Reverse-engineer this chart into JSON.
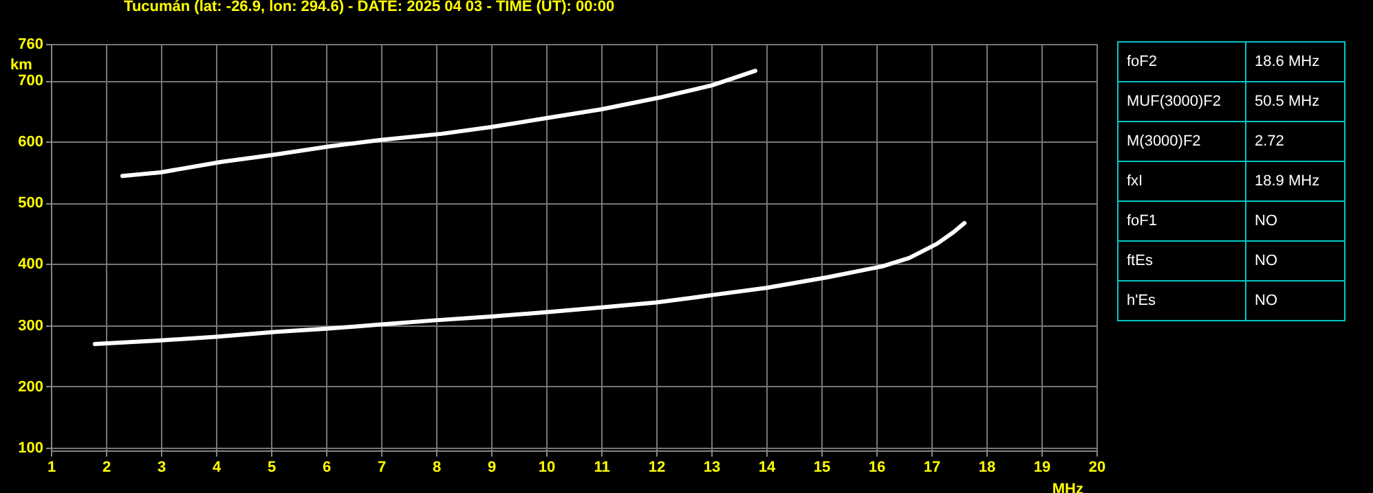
{
  "chart_data": [
    {
      "type": "line",
      "title": "Tucumán (lat: -26.9, lon: 294.6) - DATE: 2025 04 03 - TIME (UT): 00:00",
      "xlabel": "MHz",
      "ylabel": "km",
      "xlim": [
        1,
        20
      ],
      "ylim": [
        95,
        760
      ],
      "xticks": [
        1,
        2,
        3,
        4,
        5,
        6,
        7,
        8,
        9,
        10,
        11,
        12,
        13,
        14,
        15,
        16,
        17,
        18,
        19,
        20
      ],
      "yticks": [
        100,
        200,
        300,
        400,
        500,
        600,
        700,
        760
      ],
      "grid": true,
      "marker": "none",
      "series": [
        {
          "color": "#ffffff",
          "x": [
            1.8,
            3,
            4,
            5.1,
            6,
            7,
            8,
            9,
            10.1,
            11,
            12,
            12.6,
            13,
            14,
            15.1,
            16.1,
            16.6,
            17.1,
            17.4,
            17.6
          ],
          "values": [
            269,
            275,
            281,
            289,
            294,
            301,
            308,
            314,
            322,
            329,
            337,
            344,
            349,
            361,
            378,
            396,
            410,
            433,
            452,
            467
          ]
        },
        {
          "color": "#ffffff",
          "x": [
            2.3,
            3,
            4.1,
            5,
            6.1,
            7,
            8.1,
            9,
            10.1,
            11,
            12.1,
            13,
            13.8
          ],
          "values": [
            544,
            550,
            567,
            578,
            593,
            603,
            613,
            624,
            640,
            653,
            673,
            692,
            716
          ]
        }
      ]
    },
    {
      "type": "other",
      "annotations": [
        "foF2",
        "18.6 MHz",
        "MUF(3000)F2",
        "50.5 MHz",
        "M(3000)F2",
        "2.72",
        "fxI",
        "18.9 MHz",
        "foF1",
        "NO",
        "ftEs",
        "NO",
        "h'Es",
        "NO"
      ]
    }
  ]
}
